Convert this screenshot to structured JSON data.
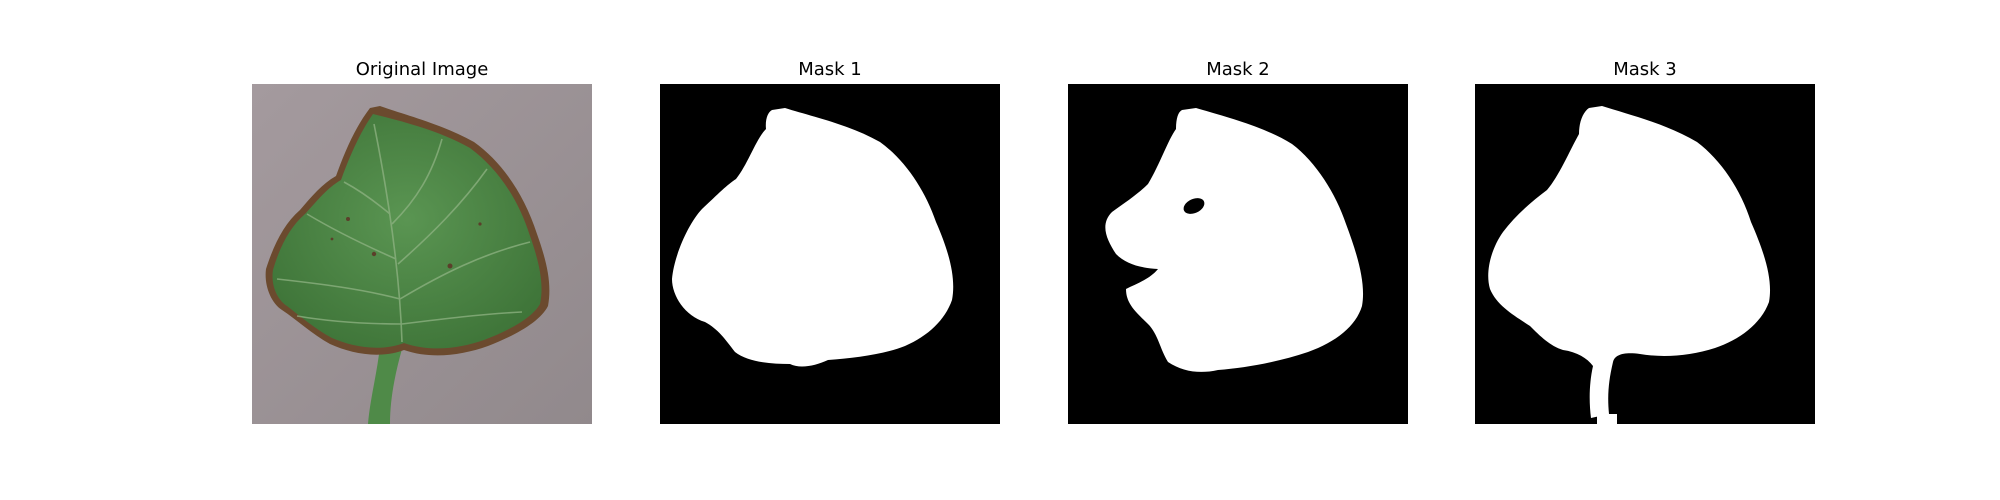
{
  "figure": {
    "panels": [
      {
        "title": "Original Image",
        "kind": "photo"
      },
      {
        "title": "Mask 1",
        "kind": "mask"
      },
      {
        "title": "Mask 2",
        "kind": "mask"
      },
      {
        "title": "Mask 3",
        "kind": "mask"
      }
    ],
    "colors": {
      "background_photo": "#9c9396",
      "leaf_green": "#4f8a48",
      "leaf_dark": "#3c6c38",
      "leaf_vein": "#8fb383",
      "leaf_edge_brown": "#6b4a2e",
      "mask_background": "#000000",
      "mask_foreground": "#ffffff"
    }
  }
}
